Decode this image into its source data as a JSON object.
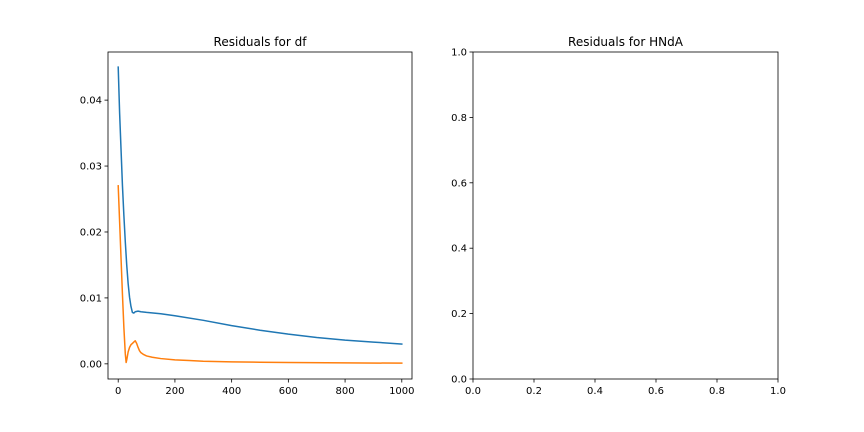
{
  "chart_data": [
    {
      "type": "line",
      "title": "Residuals for df",
      "xlabel": "",
      "ylabel": "",
      "xlim": [
        -36,
        1036
      ],
      "ylim": [
        -0.0023,
        0.0473
      ],
      "x_ticks": [
        0,
        200,
        400,
        600,
        800,
        1000
      ],
      "x_tick_labels": [
        "0",
        "200",
        "400",
        "600",
        "800",
        "1000"
      ],
      "y_ticks": [
        0,
        0.01,
        0.02,
        0.03,
        0.04
      ],
      "y_tick_labels": [
        "0.00",
        "0.01",
        "0.02",
        "0.03",
        "0.04"
      ],
      "grid": false,
      "series": [
        {
          "color": "#1f77b4",
          "x": [
            0,
            5,
            10,
            15,
            20,
            25,
            30,
            35,
            40,
            45,
            50,
            55,
            60,
            70,
            80,
            100,
            150,
            200,
            300,
            400,
            500,
            600,
            700,
            800,
            900,
            1000
          ],
          "y": [
            0.045,
            0.038,
            0.0325,
            0.027,
            0.0225,
            0.0185,
            0.015,
            0.0122,
            0.0101,
            0.0087,
            0.0078,
            0.0077,
            0.0079,
            0.008,
            0.0079,
            0.0078,
            0.0076,
            0.0073,
            0.0066,
            0.0058,
            0.0051,
            0.0045,
            0.004,
            0.0036,
            0.0033,
            0.003
          ]
        },
        {
          "color": "#ff7f0e",
          "x": [
            0,
            5,
            10,
            15,
            20,
            25,
            28,
            31,
            35,
            40,
            45,
            50,
            55,
            60,
            65,
            70,
            75,
            80,
            90,
            100,
            120,
            150,
            200,
            250,
            300,
            400,
            500,
            600,
            800,
            1000
          ],
          "y": [
            0.027,
            0.0215,
            0.016,
            0.0105,
            0.0055,
            0.0015,
            0.0002,
            0.0008,
            0.0018,
            0.0025,
            0.0029,
            0.0031,
            0.0033,
            0.0035,
            0.0031,
            0.0025,
            0.002,
            0.0017,
            0.0014,
            0.0012,
            0.001,
            0.0008,
            0.0006,
            0.0005,
            0.0004,
            0.0003,
            0.00025,
            0.0002,
            0.00015,
            0.0001
          ]
        }
      ]
    },
    {
      "type": "line",
      "title": "Residuals for HNdA",
      "xlabel": "",
      "ylabel": "",
      "xlim": [
        0,
        1
      ],
      "ylim": [
        0,
        1
      ],
      "x_ticks": [
        0,
        0.2,
        0.4,
        0.6,
        0.8,
        1.0
      ],
      "x_tick_labels": [
        "0.0",
        "0.2",
        "0.4",
        "0.6",
        "0.8",
        "1.0"
      ],
      "y_ticks": [
        0,
        0.2,
        0.4,
        0.6,
        0.8,
        1.0
      ],
      "y_tick_labels": [
        "0.0",
        "0.2",
        "0.4",
        "0.6",
        "0.8",
        "1.0"
      ],
      "grid": false,
      "series": []
    }
  ]
}
